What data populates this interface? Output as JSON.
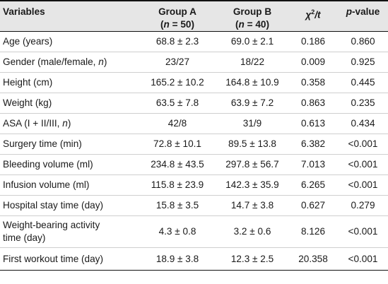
{
  "headers": {
    "variables": "Variables",
    "group_a": "Group A",
    "group_a_n_prefix": "(",
    "group_a_n": "n",
    "group_a_n_suffix": " = 50)",
    "group_b": "Group B",
    "group_b_n_prefix": "(",
    "group_b_n": "n",
    "group_b_n_suffix": " = 40)",
    "stat_chi": "χ",
    "stat_sup": "2",
    "stat_t": "/t",
    "pvalue_p": "p",
    "pvalue_rest": "-value"
  },
  "rows": [
    {
      "variable": "Age (years)",
      "var_italic": "",
      "var_suffix": "",
      "a": "68.8 ± 2.3",
      "b": "69.0 ± 2.1",
      "stat": "0.186",
      "p": "0.860"
    },
    {
      "variable": "Gender (male/female, ",
      "var_italic": "n",
      "var_suffix": ")",
      "a": "23/27",
      "b": "18/22",
      "stat": "0.009",
      "p": "0.925"
    },
    {
      "variable": "Height (cm)",
      "var_italic": "",
      "var_suffix": "",
      "a": "165.2 ± 10.2",
      "b": "164.8 ± 10.9",
      "stat": "0.358",
      "p": "0.445"
    },
    {
      "variable": "Weight (kg)",
      "var_italic": "",
      "var_suffix": "",
      "a": "63.5 ± 7.8",
      "b": "63.9 ± 7.2",
      "stat": "0.863",
      "p": "0.235"
    },
    {
      "variable": "ASA (I + II/III, ",
      "var_italic": "n",
      "var_suffix": ")",
      "a": "42/8",
      "b": "31/9",
      "stat": "0.613",
      "p": "0.434"
    },
    {
      "variable": "Surgery time (min)",
      "var_italic": "",
      "var_suffix": "",
      "a": "72.8 ± 10.1",
      "b": "89.5 ± 13.8",
      "stat": "6.382",
      "p": "<0.001"
    },
    {
      "variable": "Bleeding volume (ml)",
      "var_italic": "",
      "var_suffix": "",
      "a": "234.8 ± 43.5",
      "b": "297.8 ± 56.7",
      "stat": "7.013",
      "p": "<0.001"
    },
    {
      "variable": "Infusion volume (ml)",
      "var_italic": "",
      "var_suffix": "",
      "a": "115.8 ± 23.9",
      "b": "142.3 ± 35.9",
      "stat": "6.265",
      "p": "<0.001"
    },
    {
      "variable": "Hospital stay time (day)",
      "var_italic": "",
      "var_suffix": "",
      "a": "15.8 ± 3.5",
      "b": "14.7 ± 3.8",
      "stat": "0.627",
      "p": "0.279"
    },
    {
      "variable": "Weight-bearing activity",
      "variable_line2": "time (day)",
      "a": "4.3 ± 0.8",
      "b": "3.2 ± 0.6",
      "stat": "8.126",
      "p": "<0.001"
    },
    {
      "variable": "First workout time (day)",
      "var_italic": "",
      "var_suffix": "",
      "a": "18.9 ± 3.8",
      "b": "12.3 ± 2.5",
      "stat": "20.358",
      "p": "<0.001"
    }
  ]
}
